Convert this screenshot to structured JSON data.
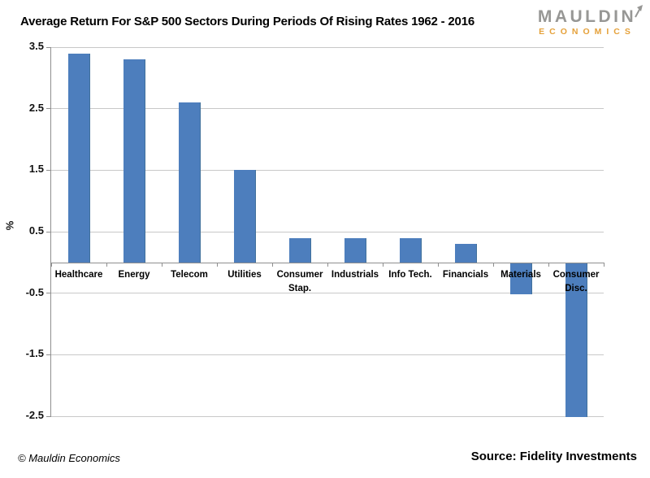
{
  "header": {
    "title": "Average Return For S&P 500 Sectors During Periods Of Rising Rates 1962 - 2016",
    "logo": {
      "top": "MAULDIN",
      "bottom": "ECONOMICS"
    }
  },
  "footer": {
    "copyright": "© Mauldin Economics",
    "source": "Source: Fidelity Investments"
  },
  "colors": {
    "bar": "#4d7ebd",
    "bar_edge": "#41719c",
    "gridline": "#c8c8c8",
    "axis": "#8f8f8f",
    "logo_gray": "#979795",
    "logo_orange": "#e5a13a"
  },
  "chart_data": {
    "type": "bar",
    "title": "Average Return For S&P 500 Sectors During Periods Of Rising Rates 1962 - 2016",
    "xlabel": "",
    "ylabel": "%",
    "categories": [
      "Healthcare",
      "Energy",
      "Telecom",
      "Utilities",
      "Consumer\nStap.",
      "Industrials",
      "Info Tech.",
      "Financials",
      "Materials",
      "Consumer\nDisc."
    ],
    "values": [
      3.4,
      3.3,
      2.6,
      1.5,
      0.4,
      0.4,
      0.4,
      0.3,
      -0.5,
      -2.5
    ],
    "ylim": [
      -2.5,
      3.5
    ],
    "yticks": [
      3.5,
      2.5,
      1.5,
      0.5,
      -0.5,
      -1.5,
      -2.5
    ],
    "grid": true,
    "legend": false,
    "source": "Source: Fidelity Investments"
  }
}
